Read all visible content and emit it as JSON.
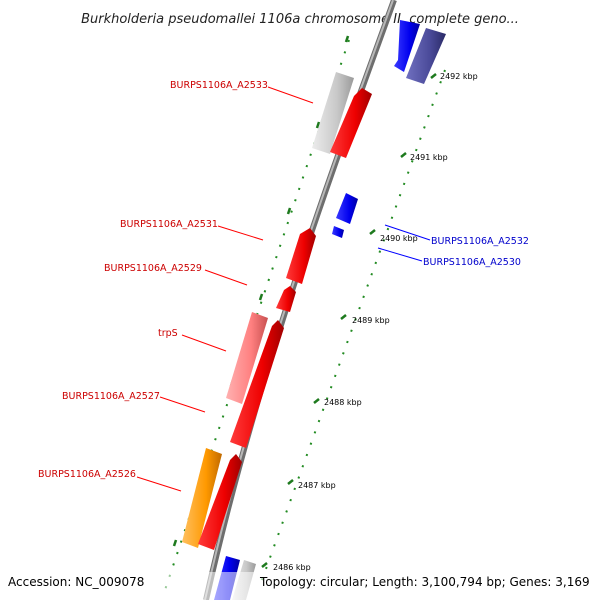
{
  "title": "Burkholderia pseudomallei 1106a chromosome II, complete geno...",
  "footer": {
    "accession": "Accession: NC_009078",
    "summary": "Topology: circular; Length: 3,100,794 bp; Genes: 3,169"
  },
  "colors": {
    "forward_cds": "#ff0000",
    "reverse_cds": "#0000ff",
    "forward_label": "#cc0000",
    "reverse_label": "#0000cc",
    "backbone": "#888888",
    "tick": "#228b22",
    "rrna_orange": "#ff9900",
    "pseudo_pink": "#ff8080",
    "grey_feature": "#c8c8c8",
    "navy_feature": "#4a4a99"
  },
  "kbp_ticks": [
    "2492 kbp",
    "2491 kbp",
    "2490 kbp",
    "2489 kbp",
    "2488 kbp",
    "2487 kbp",
    "2486 kbp"
  ],
  "gene_labels": [
    {
      "text": "BURPS1106A_A2533",
      "strand": "forward"
    },
    {
      "text": "BURPS1106A_A2531",
      "strand": "forward"
    },
    {
      "text": "BURPS1106A_A2529",
      "strand": "forward"
    },
    {
      "text": "trpS",
      "strand": "forward"
    },
    {
      "text": "BURPS1106A_A2527",
      "strand": "forward"
    },
    {
      "text": "BURPS1106A_A2526",
      "strand": "forward"
    },
    {
      "text": "BURPS1106A_A2532",
      "strand": "reverse"
    },
    {
      "text": "BURPS1106A_A2530",
      "strand": "reverse"
    }
  ]
}
